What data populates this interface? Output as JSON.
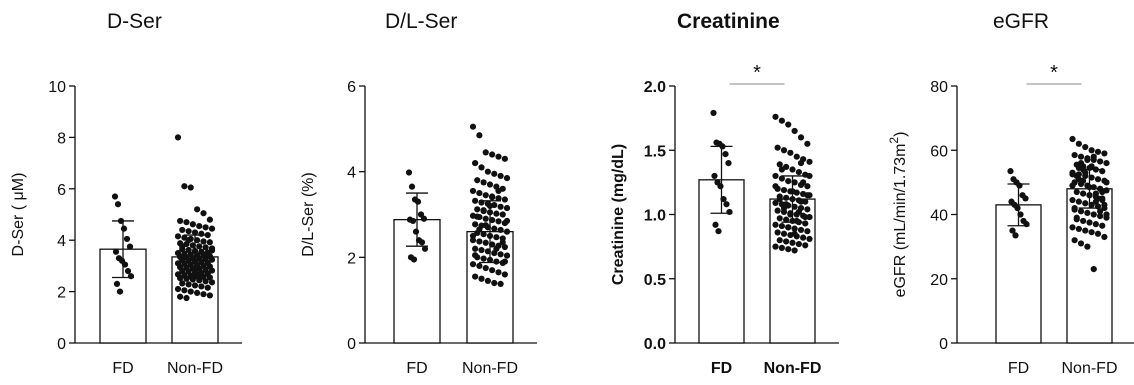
{
  "chart_data": [
    {
      "type": "bar",
      "title": "D-Ser",
      "ylabel": "D-Ser ( μM)",
      "categories": [
        "FD",
        "Non-FD"
      ],
      "values": [
        3.65,
        3.35
      ],
      "sd": [
        1.1,
        0.85
      ],
      "ylim": [
        0,
        10
      ],
      "yticks": [
        "0",
        "2",
        "4",
        "6",
        "8",
        "10"
      ],
      "significance": "",
      "points": [
        [
          5.7,
          5.4,
          4.75,
          4.45,
          4.05,
          3.75,
          3.55,
          3.3,
          3.2,
          3.05,
          2.8,
          2.6,
          2.3,
          2.0
        ],
        [
          8.0,
          6.1,
          6.05,
          5.2,
          5.05,
          4.8,
          4.75,
          4.7,
          4.62,
          4.55,
          4.5,
          4.45,
          4.4,
          4.35,
          4.3,
          4.25,
          4.2,
          4.15,
          4.1,
          4.05,
          4.0,
          3.95,
          3.92,
          3.88,
          3.85,
          3.8,
          3.76,
          3.72,
          3.68,
          3.65,
          3.62,
          3.58,
          3.55,
          3.52,
          3.5,
          3.47,
          3.44,
          3.42,
          3.4,
          3.38,
          3.35,
          3.33,
          3.3,
          3.28,
          3.26,
          3.24,
          3.22,
          3.2,
          3.18,
          3.15,
          3.12,
          3.1,
          3.08,
          3.05,
          3.03,
          3.0,
          2.98,
          2.95,
          2.93,
          2.9,
          2.88,
          2.85,
          2.82,
          2.8,
          2.78,
          2.75,
          2.72,
          2.7,
          2.67,
          2.64,
          2.62,
          2.6,
          2.57,
          2.55,
          2.52,
          2.5,
          2.47,
          2.44,
          2.4,
          2.36,
          2.32,
          2.28,
          2.24,
          2.2,
          2.15,
          2.1,
          2.05,
          2.0,
          1.95,
          1.9,
          1.85,
          1.8,
          1.75,
          2.55,
          2.65,
          3.45,
          3.6,
          3.75,
          4.0,
          2.9
        ]
      ]
    },
    {
      "type": "bar",
      "title": "D/L-Ser",
      "ylabel": "D/L-Ser (%)",
      "categories": [
        "FD",
        "Non-FD"
      ],
      "values": [
        2.88,
        2.6
      ],
      "sd": [
        0.62,
        0.72
      ],
      "ylim": [
        0,
        6
      ],
      "yticks": [
        "0",
        "2",
        "4",
        "6"
      ],
      "significance": "",
      "points": [
        [
          3.98,
          3.65,
          3.35,
          3.3,
          3.0,
          2.9,
          2.88,
          2.85,
          2.6,
          2.4,
          2.35,
          2.2,
          2.0,
          1.95
        ],
        [
          5.05,
          4.85,
          4.45,
          4.4,
          4.35,
          4.3,
          4.2,
          4.1,
          4.0,
          3.95,
          3.9,
          3.85,
          3.8,
          3.75,
          3.7,
          3.65,
          3.6,
          3.55,
          3.5,
          3.45,
          3.42,
          3.38,
          3.35,
          3.32,
          3.28,
          3.25,
          3.22,
          3.18,
          3.15,
          3.12,
          3.08,
          3.05,
          3.02,
          3.0,
          2.97,
          2.94,
          2.9,
          2.87,
          2.84,
          2.8,
          2.77,
          2.74,
          2.7,
          2.67,
          2.64,
          2.6,
          2.57,
          2.54,
          2.5,
          2.47,
          2.44,
          2.4,
          2.37,
          2.34,
          2.3,
          2.27,
          2.24,
          2.2,
          2.17,
          2.14,
          2.1,
          2.07,
          2.04,
          2.0,
          1.97,
          1.94,
          1.9,
          1.87,
          1.84,
          1.8,
          1.75,
          1.7,
          1.65,
          1.6,
          1.55,
          1.5,
          1.45,
          1.4,
          1.38,
          2.85,
          2.95,
          3.1,
          3.2,
          2.2,
          2.35,
          2.5,
          2.65,
          2.75,
          3.4,
          3.55,
          1.9,
          2.05
        ]
      ]
    },
    {
      "type": "bar",
      "title": "Creatinine",
      "ylabel": "Creatinine (mg/dL)",
      "categories": [
        "FD",
        "Non-FD"
      ],
      "values": [
        1.27,
        1.12
      ],
      "sd": [
        0.26,
        0.18
      ],
      "ylim": [
        0,
        2.0
      ],
      "yticks": [
        "0.0",
        "0.5",
        "1.0",
        "1.5",
        "2.0"
      ],
      "significance": "*",
      "points": [
        [
          1.79,
          1.56,
          1.55,
          1.53,
          1.47,
          1.4,
          1.3,
          1.25,
          1.22,
          1.12,
          1.08,
          1.02,
          0.92,
          0.87
        ],
        [
          1.76,
          1.73,
          1.7,
          1.65,
          1.6,
          1.55,
          1.52,
          1.5,
          1.48,
          1.45,
          1.43,
          1.41,
          1.39,
          1.37,
          1.35,
          1.33,
          1.31,
          1.3,
          1.28,
          1.26,
          1.25,
          1.23,
          1.22,
          1.2,
          1.19,
          1.18,
          1.17,
          1.16,
          1.15,
          1.14,
          1.13,
          1.12,
          1.11,
          1.1,
          1.09,
          1.08,
          1.07,
          1.06,
          1.05,
          1.04,
          1.03,
          1.02,
          1.01,
          1.0,
          0.99,
          0.98,
          0.97,
          0.96,
          0.95,
          0.94,
          0.93,
          0.92,
          0.91,
          0.9,
          0.89,
          0.88,
          0.87,
          0.86,
          0.85,
          0.84,
          0.83,
          0.82,
          0.81,
          0.8,
          0.79,
          0.78,
          0.77,
          0.76,
          0.75,
          0.74,
          0.73,
          0.72,
          1.1,
          1.15,
          1.2,
          1.05,
          1.0,
          0.95,
          1.25,
          1.3,
          1.12,
          1.08,
          1.18,
          1.02,
          0.98,
          1.22,
          1.35,
          0.9,
          0.85,
          1.4
        ]
      ]
    },
    {
      "type": "bar",
      "title": "eGFR",
      "ylabel": "eGFR (mL/min/1.73m",
      "ylabel_sup": "2",
      "ylabel_end": ")",
      "categories": [
        "FD",
        "Non-FD"
      ],
      "values": [
        43,
        48
      ],
      "sd": [
        6.5,
        6.0
      ],
      "ylim": [
        0,
        80
      ],
      "yticks": [
        "0",
        "20",
        "40",
        "60",
        "80"
      ],
      "significance": "*",
      "points": [
        [
          53.5,
          51,
          50,
          49,
          46,
          45,
          44,
          43,
          42,
          40,
          38,
          37,
          35,
          33.5
        ],
        [
          63.5,
          62,
          61,
          60,
          59.5,
          59,
          58.5,
          58,
          57.5,
          57,
          56.5,
          56,
          55.5,
          55,
          54.5,
          54,
          53.5,
          53,
          52.5,
          52,
          51.5,
          51,
          50.5,
          50,
          49.5,
          49,
          48.5,
          48,
          47.5,
          47,
          46.5,
          46,
          45.5,
          45,
          44.5,
          44,
          43.5,
          43,
          42.5,
          42,
          41.5,
          41,
          40.5,
          40,
          39.5,
          39,
          38.5,
          38,
          37.5,
          37,
          36.5,
          36,
          35.5,
          35,
          34.5,
          34,
          33,
          32,
          31,
          30,
          23,
          48,
          50,
          52,
          54,
          46,
          44,
          47,
          49,
          51,
          53,
          55,
          45,
          43,
          42,
          56,
          57,
          58,
          41,
          40,
          39,
          50.5,
          48.5,
          46.5,
          44.5,
          52.5,
          54.5
        ]
      ]
    }
  ]
}
